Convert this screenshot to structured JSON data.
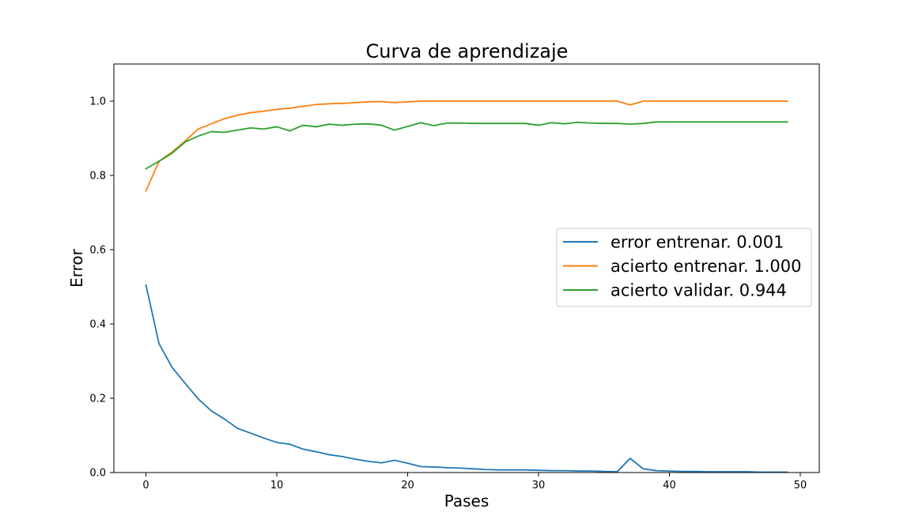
{
  "chart_data": {
    "type": "line",
    "title": "Curva de aprendizaje",
    "xlabel": "Pases",
    "ylabel": "Error",
    "xlim": [
      -2.45,
      51.45
    ],
    "ylim": [
      0,
      1.1
    ],
    "xticks": [
      0,
      10,
      20,
      30,
      40,
      50
    ],
    "yticks": [
      0.0,
      0.2,
      0.4,
      0.6,
      0.8,
      1.0
    ],
    "xtick_labels": [
      "0",
      "10",
      "20",
      "30",
      "40",
      "50"
    ],
    "ytick_labels": [
      "0.0",
      "0.2",
      "0.4",
      "0.6",
      "0.8",
      "1.0"
    ],
    "grid": false,
    "legend_position": "center-right",
    "x": [
      0,
      1,
      2,
      3,
      4,
      5,
      6,
      7,
      8,
      9,
      10,
      11,
      12,
      13,
      14,
      15,
      16,
      17,
      18,
      19,
      20,
      21,
      22,
      23,
      24,
      25,
      26,
      27,
      28,
      29,
      30,
      31,
      32,
      33,
      34,
      35,
      36,
      37,
      38,
      39,
      40,
      41,
      42,
      43,
      44,
      45,
      46,
      47,
      48,
      49
    ],
    "series": [
      {
        "name": "error entrenar. 0.001",
        "color": "#1f77b4",
        "values": [
          0.505,
          0.347,
          0.283,
          0.24,
          0.198,
          0.166,
          0.144,
          0.119,
          0.106,
          0.093,
          0.081,
          0.076,
          0.063,
          0.056,
          0.048,
          0.043,
          0.036,
          0.03,
          0.026,
          0.033,
          0.025,
          0.016,
          0.015,
          0.013,
          0.012,
          0.01,
          0.008,
          0.007,
          0.007,
          0.007,
          0.006,
          0.005,
          0.005,
          0.004,
          0.004,
          0.003,
          0.002,
          0.038,
          0.01,
          0.005,
          0.004,
          0.003,
          0.003,
          0.002,
          0.002,
          0.002,
          0.002,
          0.001,
          0.001,
          0.001
        ]
      },
      {
        "name": "acierto entrenar. 1.000",
        "color": "#ff7f0e",
        "values": [
          0.758,
          0.838,
          0.863,
          0.893,
          0.925,
          0.939,
          0.953,
          0.962,
          0.969,
          0.973,
          0.978,
          0.981,
          0.986,
          0.991,
          0.993,
          0.994,
          0.996,
          0.998,
          0.999,
          0.996,
          0.998,
          1.0,
          1.0,
          1.0,
          1.0,
          1.0,
          1.0,
          1.0,
          1.0,
          1.0,
          1.0,
          1.0,
          1.0,
          1.0,
          1.0,
          1.0,
          1.0,
          0.99,
          1.0,
          1.0,
          1.0,
          1.0,
          1.0,
          1.0,
          1.0,
          1.0,
          1.0,
          1.0,
          1.0,
          1.0
        ]
      },
      {
        "name": "acierto validar. 0.944",
        "color": "#2ca02c",
        "values": [
          0.818,
          0.838,
          0.86,
          0.89,
          0.906,
          0.918,
          0.916,
          0.922,
          0.928,
          0.925,
          0.931,
          0.92,
          0.935,
          0.931,
          0.938,
          0.935,
          0.938,
          0.939,
          0.935,
          0.922,
          0.932,
          0.942,
          0.934,
          0.941,
          0.941,
          0.94,
          0.94,
          0.94,
          0.94,
          0.94,
          0.935,
          0.942,
          0.939,
          0.943,
          0.941,
          0.94,
          0.94,
          0.938,
          0.94,
          0.944,
          0.944,
          0.944,
          0.944,
          0.944,
          0.944,
          0.944,
          0.944,
          0.944,
          0.944,
          0.944
        ]
      }
    ]
  }
}
